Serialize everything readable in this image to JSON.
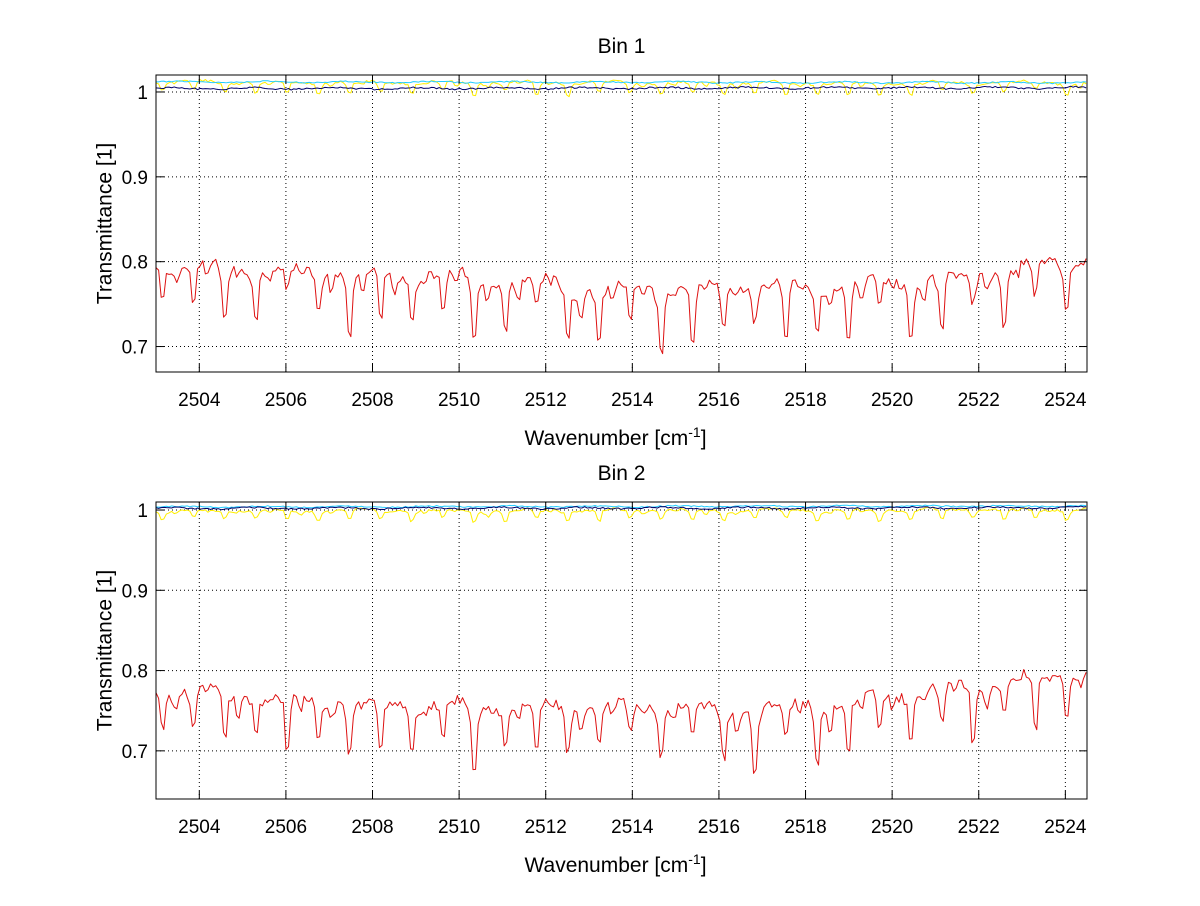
{
  "chart_data": [
    {
      "type": "line",
      "title": "Bin 1",
      "xlabel": "Wavenumber [cm",
      "xlabel_sup": "-1",
      "xlabel_end": "]",
      "ylabel": "Transmittance [1]",
      "xlim": [
        2503.0,
        2524.5
      ],
      "ylim": [
        0.67,
        1.02
      ],
      "xticks": [
        2504,
        2506,
        2508,
        2510,
        2512,
        2514,
        2516,
        2518,
        2520,
        2522,
        2524
      ],
      "xtick_labels": [
        "2504",
        "2506",
        "2508",
        "2510",
        "2512",
        "2514",
        "2516",
        "2518",
        "2520",
        "2522",
        "2524"
      ],
      "yticks": [
        0.7,
        0.8,
        0.9,
        1.0
      ],
      "ytick_labels": [
        "0.7",
        "0.8",
        "0.9",
        "1"
      ],
      "grid": true,
      "series": [
        {
          "color": "#dd1111",
          "baseline": [
            [
              2503.0,
              0.8
            ],
            [
              2510.0,
              0.79
            ],
            [
              2513.0,
              0.775
            ],
            [
              2517.0,
              0.775
            ],
            [
              2520.0,
              0.78
            ],
            [
              2522.0,
              0.79
            ],
            [
              2524.5,
              0.81
            ]
          ],
          "line_spacing": 0.72,
          "first_line": 2503.15,
          "line_depth_min": 0.04,
          "line_depth_max": 0.11,
          "noise": 0.012,
          "sample_step": 0.06
        },
        {
          "color": "#ffee00",
          "baseline": [
            [
              2503.0,
              1.013
            ],
            [
              2524.5,
              1.012
            ]
          ],
          "line_spacing": 0.72,
          "first_line": 2503.15,
          "line_depth_min": 0.012,
          "line_depth_max": 0.024,
          "noise": 0.003,
          "sample_step": 0.06
        },
        {
          "color": "#22ccff",
          "baseline": [
            [
              2503.0,
              1.012
            ],
            [
              2524.5,
              1.011
            ]
          ],
          "line_spacing": 0.72,
          "first_line": 2503.15,
          "line_depth_min": 0.0,
          "line_depth_max": 0.0,
          "noise": 0.0015,
          "sample_step": 0.06
        },
        {
          "color": "#000066",
          "baseline": [
            [
              2503.0,
              1.004
            ],
            [
              2524.5,
              1.005
            ]
          ],
          "line_spacing": 0.72,
          "first_line": 2503.15,
          "line_depth_min": 0.0,
          "line_depth_max": 0.0,
          "noise": 0.002,
          "sample_step": 0.06
        }
      ]
    },
    {
      "type": "line",
      "title": "Bin 2",
      "xlabel": "Wavenumber [cm",
      "xlabel_sup": "-1",
      "xlabel_end": "]",
      "ylabel": "Transmittance [1]",
      "xlim": [
        2503.0,
        2524.5
      ],
      "ylim": [
        0.64,
        1.01
      ],
      "xticks": [
        2504,
        2506,
        2508,
        2510,
        2512,
        2514,
        2516,
        2518,
        2520,
        2522,
        2524
      ],
      "xtick_labels": [
        "2504",
        "2506",
        "2508",
        "2510",
        "2512",
        "2514",
        "2516",
        "2518",
        "2520",
        "2522",
        "2524"
      ],
      "yticks": [
        0.7,
        0.8,
        0.9,
        1.0
      ],
      "ytick_labels": [
        "0.7",
        "0.8",
        "0.9",
        "1"
      ],
      "grid": true,
      "series": [
        {
          "color": "#dd1111",
          "baseline": [
            [
              2503.0,
              0.78
            ],
            [
              2508.0,
              0.765
            ],
            [
              2512.0,
              0.76
            ],
            [
              2517.0,
              0.76
            ],
            [
              2520.0,
              0.775
            ],
            [
              2522.0,
              0.79
            ],
            [
              2524.5,
              0.81
            ]
          ],
          "line_spacing": 0.72,
          "first_line": 2503.15,
          "line_depth_min": 0.05,
          "line_depth_max": 0.12,
          "noise": 0.012,
          "sample_step": 0.06
        },
        {
          "color": "#ffee00",
          "baseline": [
            [
              2503.0,
              1.0
            ],
            [
              2524.5,
              1.002
            ]
          ],
          "line_spacing": 0.72,
          "first_line": 2503.15,
          "line_depth_min": 0.012,
          "line_depth_max": 0.022,
          "noise": 0.003,
          "sample_step": 0.06
        },
        {
          "color": "#22ccff",
          "baseline": [
            [
              2503.0,
              1.004
            ],
            [
              2524.5,
              1.005
            ]
          ],
          "line_spacing": 0.72,
          "first_line": 2503.15,
          "line_depth_min": 0.0,
          "line_depth_max": 0.0,
          "noise": 0.0015,
          "sample_step": 0.06
        },
        {
          "color": "#000066",
          "baseline": [
            [
              2503.0,
              1.002
            ],
            [
              2524.5,
              1.003
            ]
          ],
          "line_spacing": 0.72,
          "first_line": 2503.15,
          "line_depth_min": 0.0,
          "line_depth_max": 0.0,
          "noise": 0.002,
          "sample_step": 0.06
        }
      ]
    }
  ]
}
